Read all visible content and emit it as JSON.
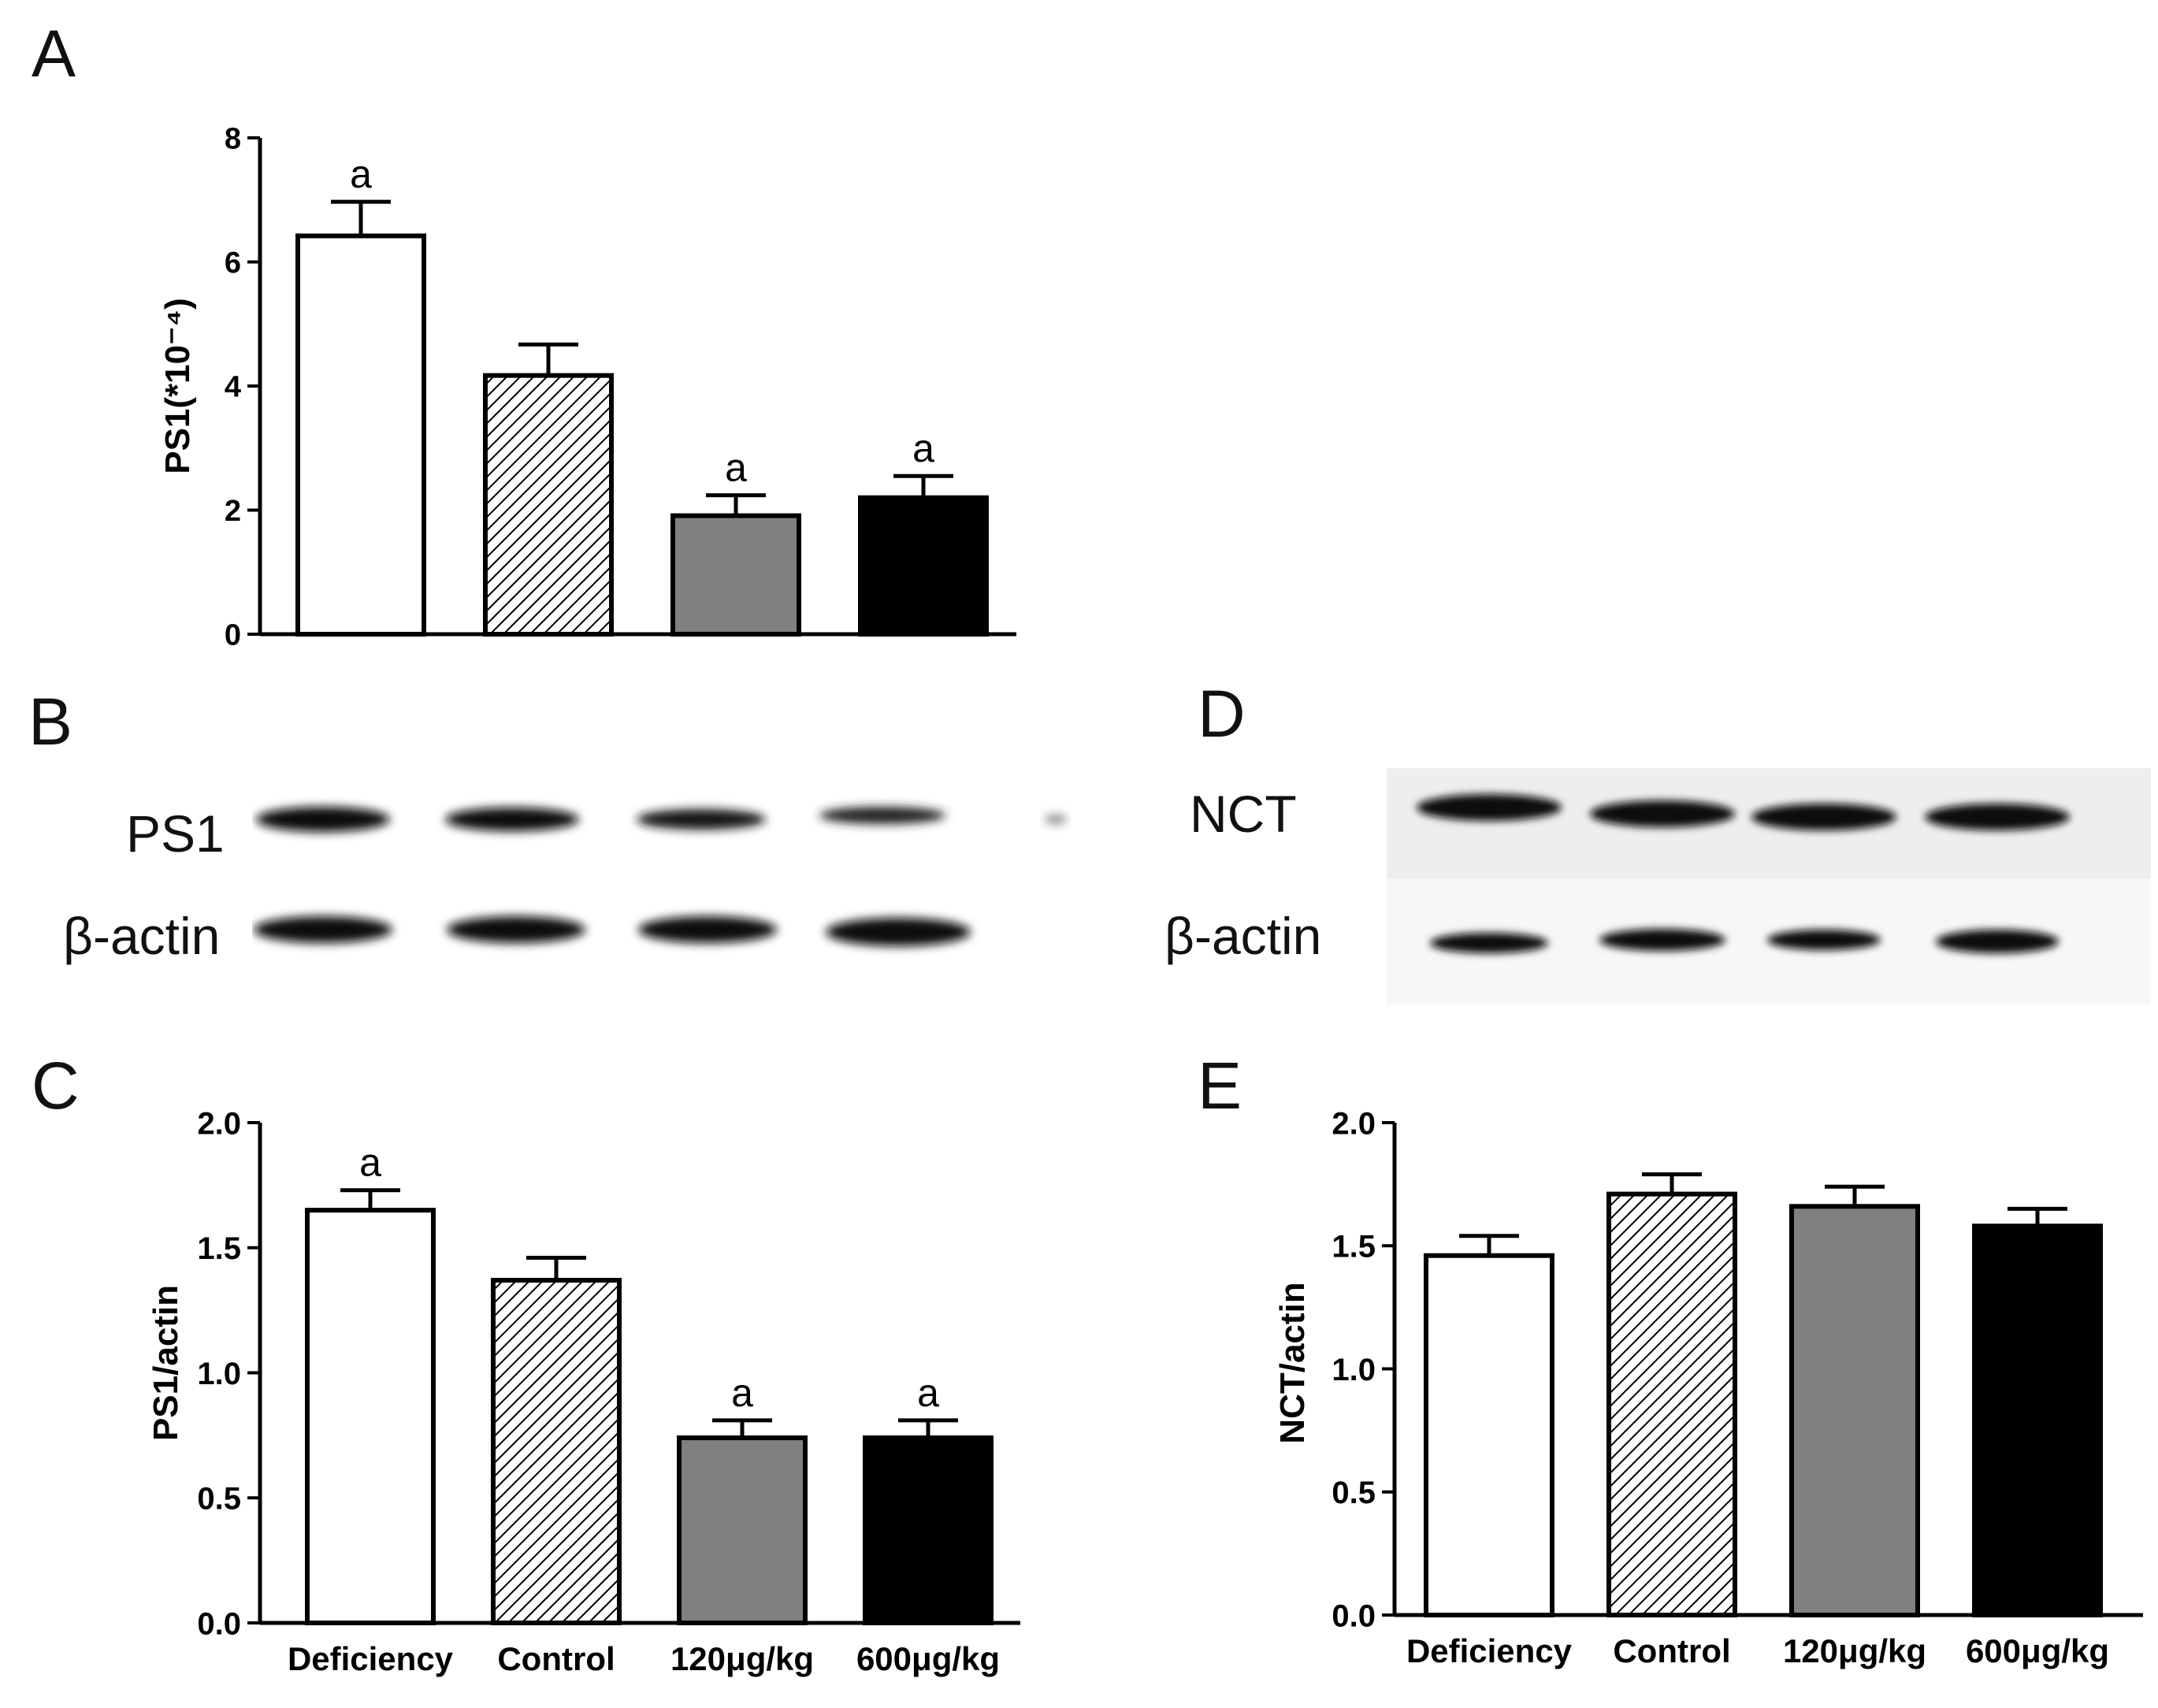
{
  "panels": {
    "a": "A",
    "b": "B",
    "c": "C",
    "d": "D",
    "e": "E"
  },
  "blot_b": {
    "row1": "PS1",
    "row2": "β-actin"
  },
  "blot_d": {
    "row1": "NCT",
    "row2": "β-actin"
  },
  "colors": {
    "deficiency": "#ffffff",
    "control": "hatched",
    "dose120": "#808080",
    "dose600": "#000000"
  },
  "chart_data": [
    {
      "id": "A",
      "type": "bar",
      "categories": [
        "Deficiency",
        "Control",
        "120μg/kg",
        "600μg/kg"
      ],
      "values": [
        6.42,
        4.17,
        1.91,
        2.2
      ],
      "errors": [
        0.55,
        0.5,
        0.33,
        0.35
      ],
      "significance": [
        "a",
        "",
        "a",
        "a"
      ],
      "ylabel": "PS1(*10⁻⁴)",
      "ylim": [
        0,
        8
      ],
      "yticks": [
        "0",
        "2",
        "4",
        "6",
        "8"
      ],
      "show_category_labels": false
    },
    {
      "id": "C",
      "type": "bar",
      "categories": [
        "Deficiency",
        "Control",
        "120μg/kg",
        "600μg/kg"
      ],
      "values": [
        1.65,
        1.37,
        0.74,
        0.74
      ],
      "errors": [
        0.08,
        0.09,
        0.07,
        0.07
      ],
      "significance": [
        "a",
        "",
        "a",
        "a"
      ],
      "ylabel": "PS1/actin",
      "ylim": [
        0,
        2.0
      ],
      "yticks": [
        "0.0",
        "0.5",
        "1.0",
        "1.5",
        "2.0"
      ],
      "show_category_labels": true
    },
    {
      "id": "E",
      "type": "bar",
      "categories": [
        "Deficiency",
        "Control",
        "120μg/kg",
        "600μg/kg"
      ],
      "values": [
        1.46,
        1.71,
        1.66,
        1.58
      ],
      "errors": [
        0.08,
        0.08,
        0.08,
        0.07
      ],
      "significance": [
        "",
        "",
        "",
        ""
      ],
      "ylabel": "NCT/actin",
      "ylim": [
        0,
        2.0
      ],
      "yticks": [
        "0.0",
        "0.5",
        "1.0",
        "1.5",
        "2.0"
      ],
      "show_category_labels": true
    }
  ]
}
